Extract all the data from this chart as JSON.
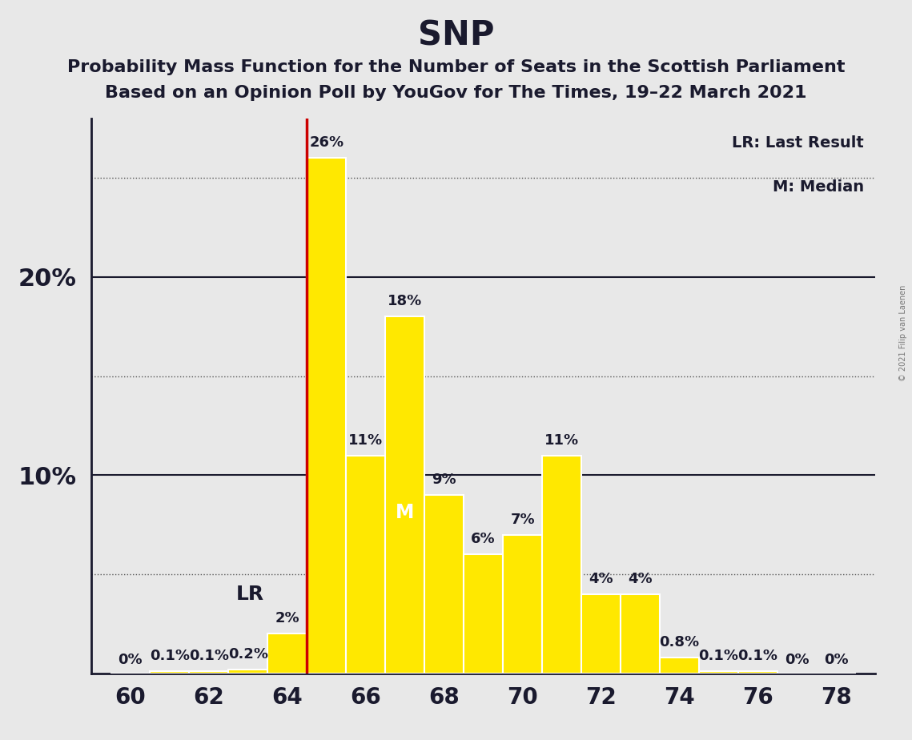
{
  "title": "SNP",
  "subtitle1": "Probability Mass Function for the Number of Seats in the Scottish Parliament",
  "subtitle2": "Based on an Opinion Poll by YouGov for The Times, 19–22 March 2021",
  "copyright": "© 2021 Filip van Laenen",
  "seats": [
    60,
    61,
    62,
    63,
    64,
    65,
    66,
    67,
    68,
    69,
    70,
    71,
    72,
    73,
    74,
    75,
    76,
    77,
    78
  ],
  "probs": [
    0.0,
    0.1,
    0.1,
    0.2,
    2.0,
    26.0,
    11.0,
    18.0,
    9.0,
    6.0,
    7.0,
    11.0,
    4.0,
    4.0,
    0.8,
    0.1,
    0.1,
    0.0,
    0.0
  ],
  "bar_color": "#FFE800",
  "lr_seat": 64,
  "median_seat": 67,
  "lr_label": "LR",
  "median_label": "M",
  "lr_line_color": "#CC0000",
  "background_color": "#E8E8E8",
  "legend_lr": "LR: Last Result",
  "legend_m": "M: Median",
  "solid_grid": [
    10,
    20
  ],
  "dotted_grid": [
    5,
    15,
    25
  ],
  "ytick_vals": [
    10,
    20
  ],
  "ytick_labels": [
    "10%",
    "20%"
  ],
  "xlim": [
    59.0,
    79.0
  ],
  "ylim": [
    0,
    28
  ],
  "title_fontsize": 30,
  "subtitle_fontsize": 16,
  "bar_label_fontsize": 13,
  "title_color": "#1a1a2e",
  "text_color": "#1a1a2e",
  "grid_color": "#555555",
  "solid_grid_color": "#1a1a2e"
}
